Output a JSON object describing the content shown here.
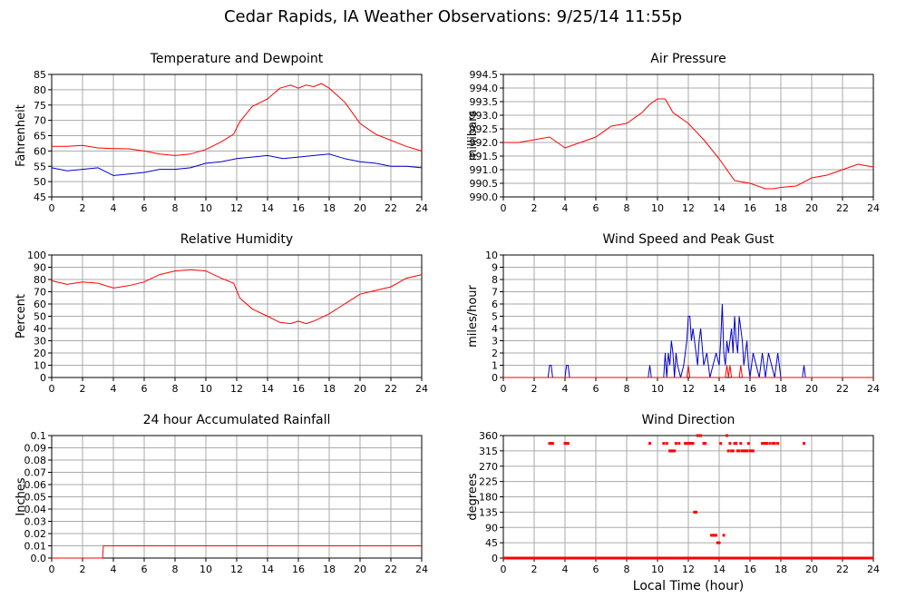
{
  "page_title": "Cedar Rapids, IA Weather Observations: 9/25/14 11:55p",
  "colors": {
    "series_red": "#ff0000",
    "series_blue": "#0000cc",
    "grid": "#aaaaaa",
    "frame": "#000000"
  },
  "chart_data": [
    {
      "id": "temp",
      "type": "line",
      "title": "Temperature and Dewpoint",
      "xlabel": "",
      "ylabel": "Fahrenheit",
      "xlim": [
        0,
        24
      ],
      "ylim": [
        45,
        85
      ],
      "xticks": [
        0,
        2,
        4,
        6,
        8,
        10,
        12,
        14,
        16,
        18,
        20,
        22,
        24
      ],
      "yticks": [
        45,
        50,
        55,
        60,
        65,
        70,
        75,
        80,
        85
      ],
      "grid": true,
      "series": [
        {
          "color": "#ff0000",
          "style": "line",
          "x": [
            0,
            1,
            2,
            3,
            4,
            5,
            6,
            7,
            8,
            9,
            10,
            11,
            11.8,
            12.2,
            13,
            14,
            14.8,
            15.5,
            16,
            16.5,
            17,
            17.5,
            18,
            19,
            20,
            21,
            22,
            23,
            24
          ],
          "y": [
            61.5,
            61.5,
            61.8,
            61,
            60.8,
            60.7,
            60,
            59,
            58.5,
            59,
            60.5,
            63,
            65.5,
            69.5,
            74.5,
            77,
            80.5,
            81.5,
            80.5,
            81.5,
            81,
            82,
            80.5,
            76,
            69,
            65.5,
            63.5,
            61.5,
            60
          ]
        },
        {
          "color": "#0000cc",
          "style": "line",
          "x": [
            0,
            1,
            2,
            3,
            4,
            5,
            6,
            7,
            8,
            9,
            10,
            11,
            12,
            13,
            14,
            15,
            16,
            17,
            18,
            19,
            20,
            21,
            22,
            23,
            24
          ],
          "y": [
            54.5,
            53.5,
            54,
            54.5,
            52,
            52.5,
            53,
            54,
            54,
            54.5,
            56,
            56.5,
            57.5,
            58,
            58.5,
            57.5,
            58,
            58.5,
            59,
            57.5,
            56.5,
            56,
            55,
            55,
            54.5
          ]
        }
      ]
    },
    {
      "id": "pressure",
      "type": "line",
      "title": "Air Pressure",
      "xlabel": "",
      "ylabel": "millibars",
      "xlim": [
        0,
        24
      ],
      "ylim": [
        990.0,
        994.5
      ],
      "xticks": [
        0,
        2,
        4,
        6,
        8,
        10,
        12,
        14,
        16,
        18,
        20,
        22,
        24
      ],
      "ytick_labels": [
        "990.0",
        "990.5",
        "991.0",
        "991.5",
        "992.0",
        "992.5",
        "993.0",
        "993.5",
        "994.0",
        "994.5"
      ],
      "grid": true,
      "series": [
        {
          "color": "#ff0000",
          "style": "line",
          "x": [
            0,
            1,
            2,
            3,
            4,
            5,
            6,
            7,
            8,
            9,
            9.5,
            10,
            10.5,
            11,
            12,
            13,
            14,
            15,
            16,
            17,
            17.5,
            18,
            19,
            20,
            21,
            22,
            23,
            24
          ],
          "y": [
            992.0,
            992.0,
            992.1,
            992.2,
            991.8,
            992.0,
            992.2,
            992.6,
            992.7,
            993.1,
            993.4,
            993.6,
            993.6,
            993.1,
            992.7,
            992.1,
            991.4,
            990.6,
            990.5,
            990.3,
            990.3,
            990.35,
            990.4,
            990.7,
            990.8,
            991.0,
            991.2,
            991.1
          ]
        }
      ]
    },
    {
      "id": "rh",
      "type": "line",
      "title": "Relative Humidity",
      "xlabel": "",
      "ylabel": "Percent",
      "xlim": [
        0,
        24
      ],
      "ylim": [
        0,
        100
      ],
      "xticks": [
        0,
        2,
        4,
        6,
        8,
        10,
        12,
        14,
        16,
        18,
        20,
        22,
        24
      ],
      "yticks": [
        0,
        10,
        20,
        30,
        40,
        50,
        60,
        70,
        80,
        90,
        100
      ],
      "grid": true,
      "series": [
        {
          "color": "#ff0000",
          "style": "line",
          "x": [
            0,
            1,
            2,
            3,
            4,
            5,
            6,
            7,
            8,
            9,
            10,
            11,
            11.8,
            12.2,
            13,
            14,
            14.8,
            15.5,
            16,
            16.5,
            17,
            18,
            19,
            20,
            21,
            22,
            23,
            24
          ],
          "y": [
            79,
            76,
            78,
            77,
            73,
            75,
            78,
            84,
            87,
            88,
            87,
            81,
            77,
            65,
            56,
            50,
            45,
            44,
            46,
            44,
            46,
            52,
            60,
            68,
            71,
            74,
            81,
            84
          ]
        }
      ]
    },
    {
      "id": "wind",
      "type": "line",
      "title": "Wind Speed and Peak Gust",
      "xlabel": "",
      "ylabel": "miles/hour",
      "xlim": [
        0,
        24
      ],
      "ylim": [
        0,
        10
      ],
      "xticks": [
        0,
        2,
        4,
        6,
        8,
        10,
        12,
        14,
        16,
        18,
        20,
        22,
        24
      ],
      "yticks": [
        0,
        1,
        2,
        3,
        4,
        5,
        6,
        7,
        8,
        9,
        10
      ],
      "grid": true,
      "series": [
        {
          "color": "#0000cc",
          "style": "line",
          "x": [
            0,
            2.9,
            3.0,
            3.1,
            3.2,
            4.0,
            4.1,
            4.2,
            4.3,
            9.4,
            9.5,
            9.6,
            10.4,
            10.5,
            10.6,
            10.7,
            10.8,
            10.9,
            11.0,
            11.1,
            11.2,
            11.3,
            11.5,
            11.7,
            11.9,
            12.0,
            12.1,
            12.2,
            12.3,
            12.4,
            12.5,
            12.6,
            12.7,
            12.8,
            13.0,
            13.2,
            13.4,
            13.6,
            13.8,
            14.0,
            14.1,
            14.2,
            14.3,
            14.4,
            14.5,
            14.6,
            14.7,
            14.8,
            14.9,
            15.0,
            15.1,
            15.2,
            15.3,
            15.4,
            15.5,
            15.6,
            15.7,
            15.8,
            15.9,
            16.0,
            16.2,
            16.4,
            16.6,
            16.8,
            16.9,
            17.0,
            17.2,
            17.4,
            17.6,
            17.8,
            18.0,
            19.4,
            19.5,
            19.6,
            24
          ],
          "y": [
            0,
            0,
            1,
            1,
            0,
            0,
            1,
            1,
            0,
            0,
            1,
            0,
            0,
            2,
            0,
            2,
            1,
            3,
            2,
            0,
            2,
            1,
            0,
            1,
            3,
            5,
            5,
            3,
            4,
            3,
            2,
            1,
            3,
            4,
            1,
            2,
            0,
            1,
            2,
            1,
            3,
            6,
            2,
            1,
            3,
            2,
            3,
            4,
            2,
            5,
            3,
            2,
            5,
            4,
            3,
            1,
            2,
            3,
            1,
            0,
            2,
            1,
            0,
            2,
            1,
            0,
            2,
            1,
            0,
            2,
            0,
            0,
            1,
            0,
            0
          ]
        },
        {
          "color": "#ff0000",
          "style": "line",
          "x": [
            0,
            11.9,
            12.0,
            12.1,
            14.4,
            14.5,
            14.6,
            14.7,
            14.8,
            15.3,
            15.4,
            15.5,
            24
          ],
          "y": [
            0,
            0,
            1,
            0,
            0,
            1,
            0,
            1,
            0,
            0,
            1,
            0,
            0
          ]
        }
      ]
    },
    {
      "id": "rain",
      "type": "line",
      "title": "24 hour Accumulated Rainfall",
      "xlabel": "",
      "ylabel": "Inches",
      "xlim": [
        0,
        24
      ],
      "ylim": [
        0,
        0.1
      ],
      "xticks": [
        0,
        2,
        4,
        6,
        8,
        10,
        12,
        14,
        16,
        18,
        20,
        22,
        24
      ],
      "ytick_labels": [
        "0.0",
        "0.01",
        "0.02",
        "0.03",
        "0.04",
        "0.05",
        "0.06",
        "0.07",
        "0.08",
        "0.09",
        "0.1"
      ],
      "grid": true,
      "series": [
        {
          "color": "#ff0000",
          "style": "line",
          "x": [
            0,
            3.3,
            3.35,
            24
          ],
          "y": [
            0,
            0,
            0.01,
            0.01
          ]
        }
      ]
    },
    {
      "id": "direction",
      "type": "scatter",
      "title": "Wind Direction",
      "xlabel": "Local Time (hour)",
      "ylabel": "degrees",
      "xlim": [
        0,
        24
      ],
      "ylim": [
        0,
        360
      ],
      "xticks": [
        0,
        2,
        4,
        6,
        8,
        10,
        12,
        14,
        16,
        18,
        20,
        22,
        24
      ],
      "yticks": [
        0,
        45,
        90,
        135,
        180,
        225,
        270,
        315,
        360
      ],
      "grid": true,
      "zero_line_from": 0,
      "zero_line_to": 24,
      "series": [
        {
          "color": "#ff0000",
          "style": "points",
          "x": [
            3.0,
            3.1,
            3.2,
            4.0,
            4.1,
            4.2,
            9.5,
            10.4,
            10.6,
            10.8,
            10.9,
            11.0,
            11.1,
            11.2,
            11.4,
            11.8,
            11.9,
            12.0,
            12.1,
            12.2,
            12.3,
            12.4,
            12.5,
            12.6,
            12.7,
            12.8,
            13.0,
            13.1,
            13.5,
            13.6,
            13.7,
            13.8,
            13.9,
            14.0,
            14.1,
            14.3,
            14.5,
            14.6,
            14.7,
            14.8,
            14.9,
            15.0,
            15.1,
            15.2,
            15.3,
            15.4,
            15.5,
            15.6,
            15.7,
            15.8,
            15.9,
            16.0,
            16.1,
            16.2,
            16.8,
            16.9,
            17.0,
            17.1,
            17.3,
            17.5,
            17.6,
            17.8,
            19.5
          ],
          "y": [
            337,
            337,
            337,
            337,
            337,
            337,
            337,
            337,
            337,
            315,
            315,
            315,
            315,
            337,
            337,
            337,
            337,
            337,
            337,
            337,
            337,
            135,
            135,
            360,
            360,
            360,
            337,
            337,
            67,
            67,
            67,
            67,
            45,
            45,
            337,
            67,
            360,
            315,
            337,
            315,
            315,
            337,
            337,
            315,
            315,
            337,
            315,
            315,
            315,
            315,
            337,
            315,
            315,
            315,
            337,
            337,
            337,
            337,
            337,
            337,
            337,
            337,
            337
          ]
        }
      ]
    }
  ]
}
